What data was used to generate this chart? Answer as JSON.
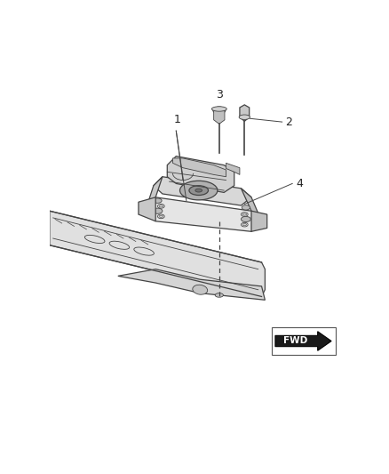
{
  "background_color": "#ffffff",
  "line_color": "#444444",
  "light_gray": "#cccccc",
  "mid_gray": "#aaaaaa",
  "dark_gray": "#888888",
  "very_light_gray": "#eeeeee",
  "figsize": [
    4.38,
    5.33
  ],
  "dpi": 100,
  "label1": "1",
  "label2": "2",
  "label3": "3",
  "label4": "4"
}
